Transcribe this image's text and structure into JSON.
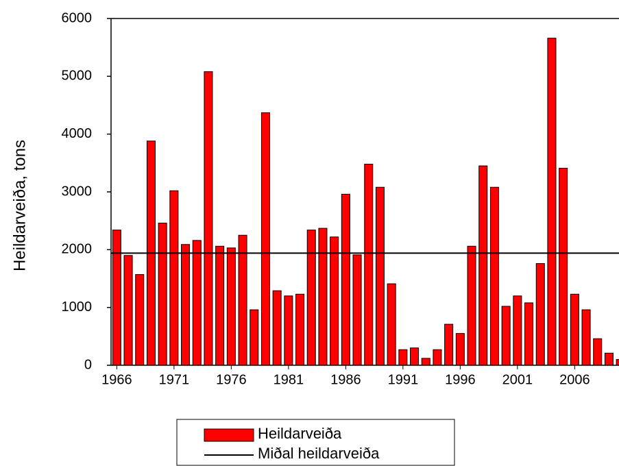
{
  "chart_data": {
    "type": "bar",
    "y_label": "Heildarveiða, tons",
    "x": [
      1966,
      1967,
      1968,
      1969,
      1970,
      1971,
      1972,
      1973,
      1974,
      1975,
      1976,
      1977,
      1978,
      1979,
      1980,
      1981,
      1982,
      1983,
      1984,
      1985,
      1986,
      1987,
      1988,
      1989,
      1990,
      1991,
      1992,
      1993,
      1994,
      1995,
      1996,
      1997,
      1998,
      1999,
      2000,
      2001,
      2002,
      2003,
      2004,
      2005,
      2006,
      2007,
      2008,
      2009,
      2010
    ],
    "series": [
      {
        "name": "Heildarveiða",
        "color": "#ff0000",
        "values": [
          2340,
          1900,
          1570,
          3880,
          2460,
          3020,
          2090,
          2160,
          5080,
          2060,
          2030,
          2250,
          960,
          4370,
          1290,
          1200,
          1230,
          2340,
          2370,
          2220,
          2960,
          1910,
          3480,
          3080,
          1410,
          270,
          300,
          120,
          270,
          710,
          550,
          2060,
          3450,
          3080,
          1020,
          1200,
          1080,
          1760,
          5660,
          3410,
          1230,
          960,
          460,
          210,
          100
        ]
      }
    ],
    "mean_line": {
      "name": "Miðal heildarveiða",
      "color": "#000000",
      "value": 1940
    },
    "xlim": [
      1965.5,
      2010.5
    ],
    "xticks": [
      1966,
      1971,
      1976,
      1981,
      1986,
      1991,
      1996,
      2001,
      2006
    ],
    "ylim": [
      0,
      6000
    ],
    "yticks": [
      0,
      1000,
      2000,
      3000,
      4000,
      5000,
      6000
    ]
  }
}
